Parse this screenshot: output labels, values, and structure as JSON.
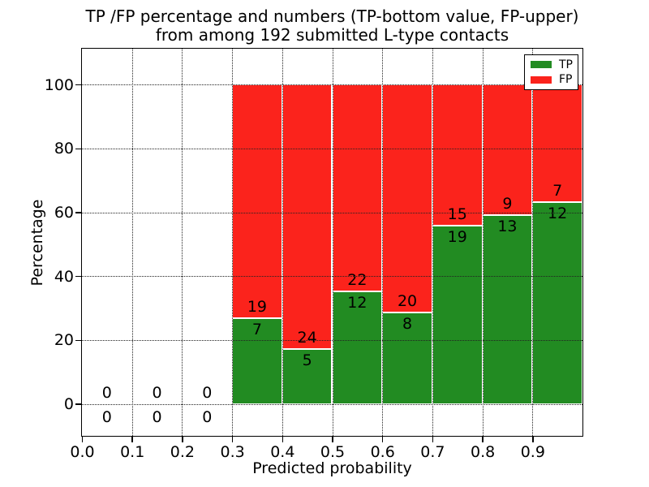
{
  "title": {
    "line1": "TP /FP percentage and numbers (TP-bottom value, FP-upper)",
    "line2": "from among 192 submitted L-type contacts"
  },
  "axes": {
    "xlabel": "Predicted probability",
    "ylabel": "Percentage",
    "x_tick_labels": [
      "0.0",
      "0.1",
      "0.2",
      "0.3",
      "0.4",
      "0.5",
      "0.6",
      "0.7",
      "0.8",
      "0.9"
    ],
    "x_tick_values": [
      0.0,
      0.1,
      0.2,
      0.3,
      0.4,
      0.5,
      0.6,
      0.7,
      0.8,
      0.9
    ],
    "y_tick_labels": [
      "0",
      "20",
      "40",
      "60",
      "80",
      "100"
    ],
    "y_tick_values": [
      0,
      20,
      40,
      60,
      80,
      100
    ],
    "grid": "dotted"
  },
  "legend": {
    "position": "upper right",
    "items": [
      {
        "label": "TP",
        "color": "#228b22"
      },
      {
        "label": "FP",
        "color": "#fb231c"
      }
    ]
  },
  "chart_data": {
    "type": "bar",
    "stacked": true,
    "normalized": "each bin scaled to 100%",
    "title": "TP /FP percentage and numbers (TP-bottom value, FP-upper) from among 192 submitted L-type contacts",
    "xlabel": "Predicted probability",
    "ylabel": "Percentage",
    "xlim": [
      0.0,
      1.0
    ],
    "ylim": [
      -10,
      111.2
    ],
    "total_contacts": 192,
    "series": [
      {
        "name": "TP",
        "color": "#228b22",
        "position": "bottom"
      },
      {
        "name": "FP",
        "color": "#fb231c",
        "position": "top"
      }
    ],
    "bins": [
      {
        "x_start": 0.0,
        "x_end": 0.1,
        "tp": 0,
        "fp": 0
      },
      {
        "x_start": 0.1,
        "x_end": 0.2,
        "tp": 0,
        "fp": 0
      },
      {
        "x_start": 0.2,
        "x_end": 0.3,
        "tp": 0,
        "fp": 0
      },
      {
        "x_start": 0.3,
        "x_end": 0.4,
        "tp": 7,
        "fp": 19
      },
      {
        "x_start": 0.4,
        "x_end": 0.5,
        "tp": 5,
        "fp": 24
      },
      {
        "x_start": 0.5,
        "x_end": 0.6,
        "tp": 12,
        "fp": 22
      },
      {
        "x_start": 0.6,
        "x_end": 0.7,
        "tp": 8,
        "fp": 20
      },
      {
        "x_start": 0.7,
        "x_end": 0.8,
        "tp": 19,
        "fp": 15
      },
      {
        "x_start": 0.8,
        "x_end": 0.9,
        "tp": 13,
        "fp": 9
      },
      {
        "x_start": 0.9,
        "x_end": 1.0,
        "tp": 12,
        "fp": 7
      }
    ]
  }
}
